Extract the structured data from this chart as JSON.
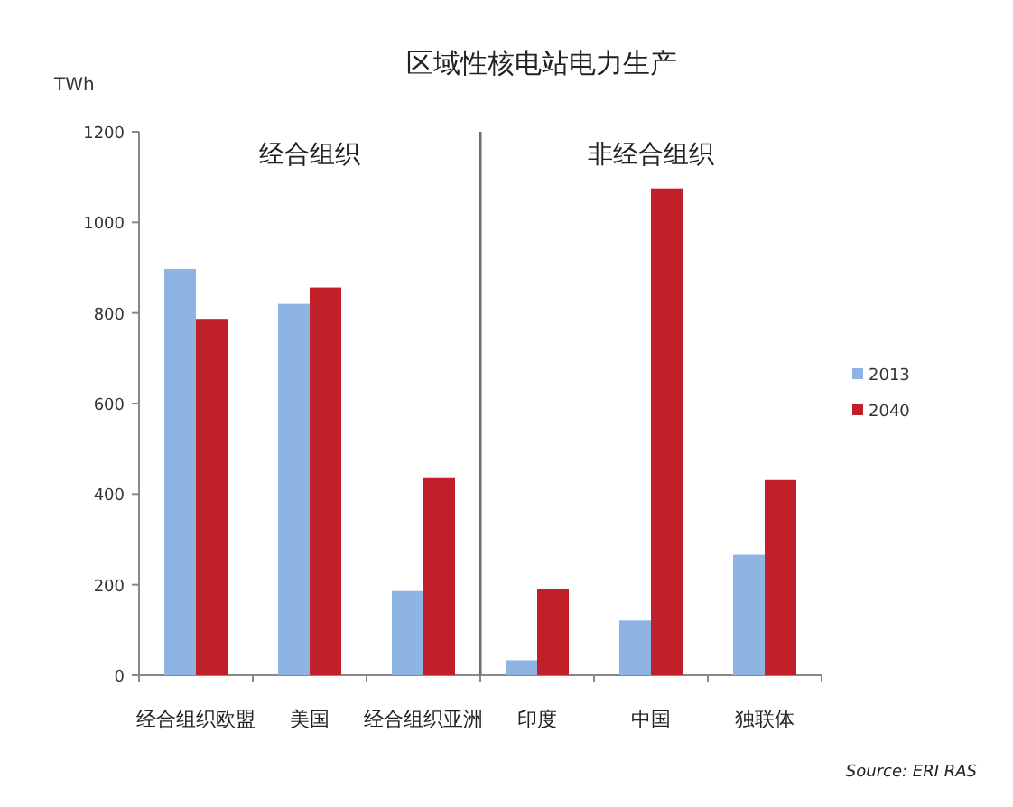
{
  "chart_data": {
    "type": "bar",
    "title": "区域性核电站电力生产",
    "ylabel": "TWh",
    "categories": [
      "经合组织欧盟",
      "美国",
      "经合组织亚洲",
      "印度",
      "中国",
      "独联体"
    ],
    "series": [
      {
        "name": "2013",
        "color": "#8eb4e3",
        "values": [
          897,
          820,
          186,
          33,
          121,
          266
        ]
      },
      {
        "name": "2040",
        "color": "#c0202a",
        "values": [
          787,
          856,
          437,
          190,
          1075,
          431
        ]
      }
    ],
    "ylim": [
      0,
      1200
    ],
    "yticks": [
      0,
      200,
      400,
      600,
      800,
      1000,
      1200
    ],
    "annotations": [
      "经合组织",
      "非经合组织",
      "Source: ERI RAS"
    ],
    "legend": "right",
    "grid": false
  }
}
